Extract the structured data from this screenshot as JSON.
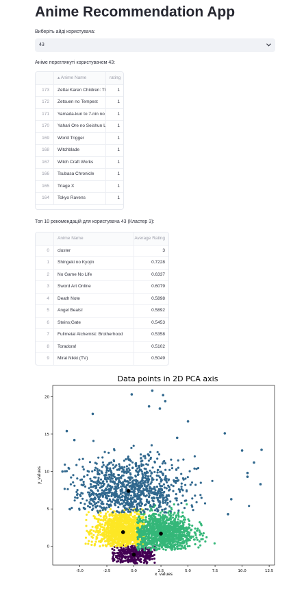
{
  "app": {
    "title": "Anime Recommendation App"
  },
  "user_select": {
    "label": "Виберіть айді користувача:",
    "value": "43"
  },
  "watched": {
    "heading": "Аніме переглянуті користувачем 43:",
    "columns": [
      "",
      "Anime Name",
      "rating"
    ],
    "rows": [
      {
        "idx": "173",
        "name": "Zettai Karen Children: Th",
        "rating": "1"
      },
      {
        "idx": "172",
        "name": "Zetsuen no Tempest",
        "rating": "1"
      },
      {
        "idx": "171",
        "name": "Yamada-kun to 7-nin no I",
        "rating": "1"
      },
      {
        "idx": "170",
        "name": "Yahari Ore no Seishun Lo",
        "rating": "1"
      },
      {
        "idx": "169",
        "name": "World Trigger",
        "rating": "1"
      },
      {
        "idx": "168",
        "name": "Witchblade",
        "rating": "1"
      },
      {
        "idx": "167",
        "name": "Witch Craft Works",
        "rating": "1"
      },
      {
        "idx": "166",
        "name": "Tsubasa Chronicle",
        "rating": "1"
      },
      {
        "idx": "165",
        "name": "Triage X",
        "rating": "1"
      },
      {
        "idx": "164",
        "name": "Tokyo Ravens",
        "rating": "1"
      }
    ]
  },
  "recommendations": {
    "heading": "Топ 10 рекомендацій для користувача 43 (Кластер 3):",
    "columns": [
      "",
      "Anime Name",
      "Average Rating"
    ],
    "rows": [
      {
        "idx": "0",
        "name": "cluster",
        "rating": "3"
      },
      {
        "idx": "1",
        "name": "Shingeki no Kyojin",
        "rating": "0.7228"
      },
      {
        "idx": "2",
        "name": "No Game No Life",
        "rating": "0.6337"
      },
      {
        "idx": "3",
        "name": "Sword Art Online",
        "rating": "0.6079"
      },
      {
        "idx": "4",
        "name": "Death Note",
        "rating": "0.5898"
      },
      {
        "idx": "5",
        "name": "Angel Beats!",
        "rating": "0.5892"
      },
      {
        "idx": "6",
        "name": "Steins;Gate",
        "rating": "0.5453"
      },
      {
        "idx": "7",
        "name": "Fullmetal Alchemist: Brotherhood",
        "rating": "0.5358"
      },
      {
        "idx": "8",
        "name": "Toradora!",
        "rating": "0.5102"
      },
      {
        "idx": "9",
        "name": "Mirai Nikki (TV)",
        "rating": "0.5049"
      }
    ]
  },
  "chart_data": {
    "type": "scatter",
    "title": "Data points in 2D PCA axis",
    "xlabel": "x_values",
    "ylabel": "y_values",
    "xlim": [
      -7.5,
      13
    ],
    "ylim": [
      -2.5,
      21.5
    ],
    "xticks": [
      "-5.0",
      "-2.5",
      "0.0",
      "2.5",
      "5.0",
      "7.5",
      "10.0",
      "12.5"
    ],
    "xtick_values": [
      -5,
      -2.5,
      0,
      2.5,
      5,
      7.5,
      10,
      12.5
    ],
    "yticks": [
      "0",
      "5",
      "10",
      "15",
      "20"
    ],
    "ytick_values": [
      0,
      5,
      10,
      15,
      20
    ],
    "clusters": [
      {
        "color": "#440154",
        "center": [
          0,
          -1.1
        ],
        "spread": [
          1.3,
          0.7
        ],
        "x_range": [
          -2,
          2
        ],
        "y_range": [
          -2.3,
          0.2
        ],
        "count": 350
      },
      {
        "color": "#fde725",
        "center": [
          -1,
          2
        ],
        "spread": [
          1.3,
          1.4
        ],
        "x_range": [
          -4.5,
          1
        ],
        "y_range": [
          0,
          5
        ],
        "count": 1100
      },
      {
        "color": "#35b779",
        "center": [
          2.5,
          1.8
        ],
        "spread": [
          1.5,
          1.4
        ],
        "x_range": [
          0.3,
          8.5
        ],
        "y_range": [
          -0.5,
          6.5
        ],
        "count": 1100
      },
      {
        "color": "#31688e",
        "center": [
          -0.5,
          7.4
        ],
        "spread": [
          2.6,
          2.2
        ],
        "x_range": [
          -6.5,
          12
        ],
        "y_range": [
          4.5,
          21
        ],
        "count": 1000
      }
    ],
    "centroids": [
      {
        "x": 0.0,
        "y": -1.1
      },
      {
        "x": -1.0,
        "y": 1.9
      },
      {
        "x": 2.5,
        "y": 1.7
      },
      {
        "x": -0.5,
        "y": 7.4
      }
    ],
    "outliers": [
      {
        "x": -0.2,
        "y": 20.3
      },
      {
        "x": 1.7,
        "y": 20.8
      },
      {
        "x": 2.7,
        "y": 20.2
      },
      {
        "x": 1.4,
        "y": 18.7
      },
      {
        "x": 2.4,
        "y": 18.4
      },
      {
        "x": 2.9,
        "y": 19.4
      },
      {
        "x": -3.8,
        "y": 17.7
      },
      {
        "x": 5.0,
        "y": 16.7
      },
      {
        "x": 8.4,
        "y": 15.1
      },
      {
        "x": 4.0,
        "y": 14.5
      },
      {
        "x": 10.0,
        "y": 12.8
      },
      {
        "x": 11.8,
        "y": 12.9
      },
      {
        "x": 11.1,
        "y": 11.2
      },
      {
        "x": 10.5,
        "y": 9.8
      },
      {
        "x": 11.7,
        "y": 8.3
      },
      {
        "x": 10.5,
        "y": 9.3
      },
      {
        "x": 9.0,
        "y": 6.3
      },
      {
        "x": 8.7,
        "y": 4.3
      },
      {
        "x": -6.2,
        "y": 15.4
      },
      {
        "x": -5.5,
        "y": 14.2
      },
      {
        "x": -6.6,
        "y": 10.0
      }
    ]
  }
}
